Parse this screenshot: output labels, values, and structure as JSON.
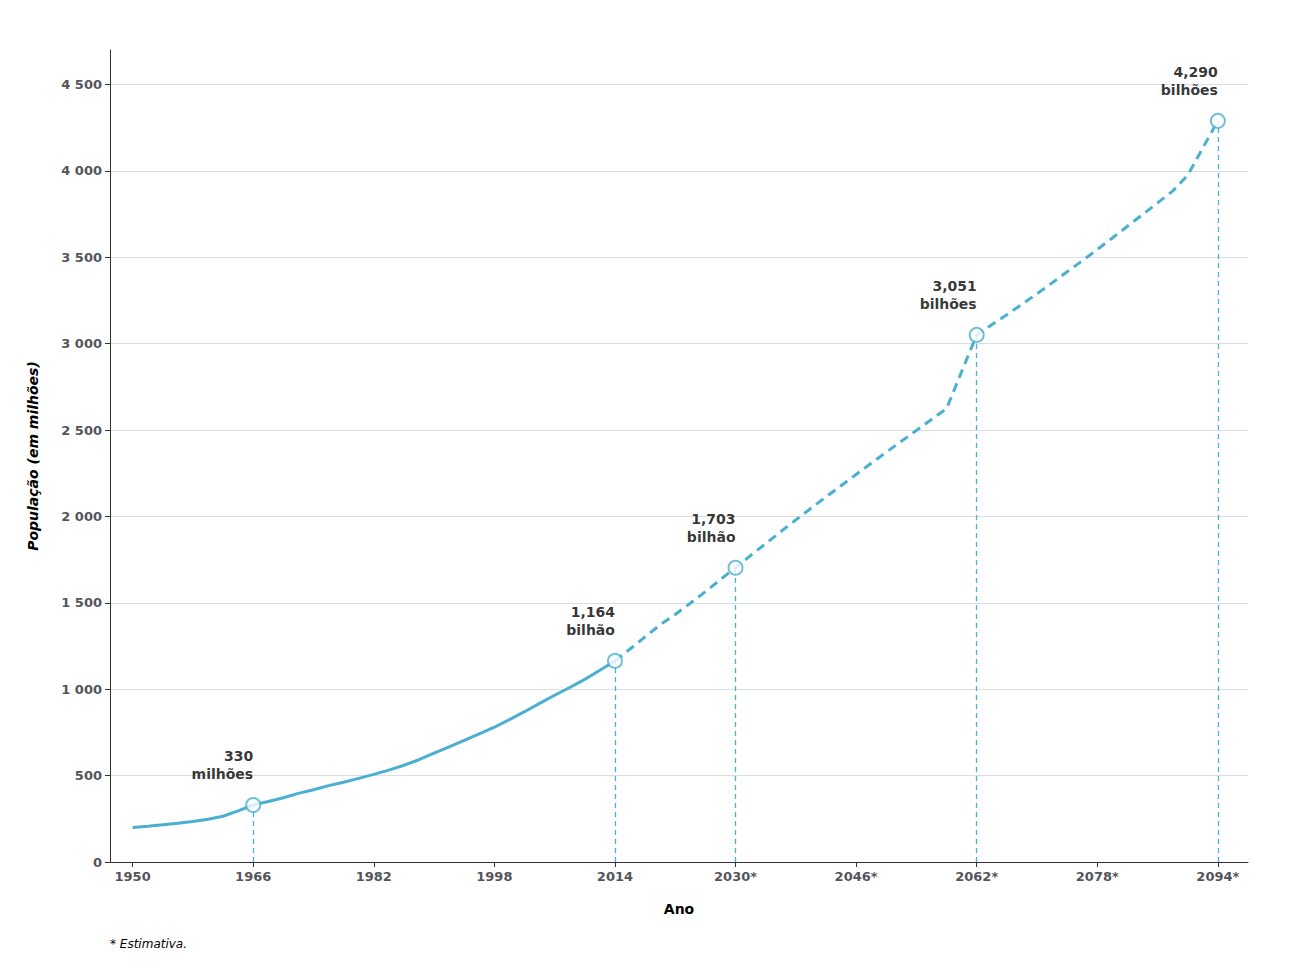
{
  "chart_data": {
    "type": "line",
    "ylabel": "População (em milhões)",
    "xlabel": "Ano",
    "footnote": "* Estimativa.",
    "xlim": [
      1947,
      2098
    ],
    "ylim": [
      0,
      4700
    ],
    "xticks": [
      1950,
      1966,
      1982,
      1998,
      2014,
      {
        "value": 2030,
        "label": "2030*"
      },
      {
        "value": 2046,
        "label": "2046*"
      },
      {
        "value": 2062,
        "label": "2062*"
      },
      {
        "value": 2078,
        "label": "2078*"
      },
      {
        "value": 2094,
        "label": "2094*"
      }
    ],
    "yticks": [
      0,
      500,
      {
        "value": 1000,
        "label": "1 000"
      },
      {
        "value": 1500,
        "label": "1 500"
      },
      {
        "value": 2000,
        "label": "2 000"
      },
      {
        "value": 2500,
        "label": "2 500"
      },
      {
        "value": 3000,
        "label": "3 000"
      },
      {
        "value": 3500,
        "label": "3 500"
      },
      {
        "value": 4000,
        "label": "4 000"
      },
      {
        "value": 4500,
        "label": "4 500"
      }
    ],
    "grid": true,
    "series": [
      {
        "type": "line",
        "line_style": "solid",
        "color": "#4AAFD0",
        "x": [
          1950,
          1952,
          1954,
          1956,
          1958,
          1960,
          1962,
          1964,
          1966,
          1968,
          1970,
          1972,
          1974,
          1976,
          1978,
          1980,
          1982,
          1984,
          1986,
          1988,
          1990,
          1992,
          1994,
          1996,
          1998,
          2000,
          2002,
          2004,
          2006,
          2008,
          2010,
          2012,
          2014
        ],
        "values": [
          200,
          207,
          215,
          224,
          235,
          248,
          265,
          296,
          330,
          350,
          372,
          397,
          418,
          442,
          462,
          484,
          507,
          532,
          560,
          592,
          630,
          667,
          704,
          742,
          780,
          824,
          870,
          918,
          965,
          1010,
          1057,
          1110,
          1164
        ]
      },
      {
        "type": "line",
        "line_style": "dashed",
        "color": "#4AAFD0",
        "x": [
          2014,
          2016,
          2018,
          2020,
          2022,
          2024,
          2026,
          2028,
          2030,
          2032,
          2034,
          2036,
          2038,
          2040,
          2042,
          2044,
          2046,
          2048,
          2050,
          2052,
          2054,
          2056,
          2058,
          2060,
          2062,
          2064,
          2066,
          2068,
          2070,
          2072,
          2074,
          2076,
          2078,
          2080,
          2082,
          2084,
          2086,
          2088,
          2090,
          2092,
          2094
        ],
        "values": [
          1164,
          1233,
          1303,
          1373,
          1433,
          1498,
          1565,
          1635,
          1703,
          1774,
          1843,
          1912,
          1980,
          2047,
          2113,
          2178,
          2243,
          2308,
          2372,
          2435,
          2498,
          2561,
          2624,
          2838,
          3051,
          3110,
          3168,
          3228,
          3289,
          3352,
          3416,
          3480,
          3545,
          3612,
          3680,
          3747,
          3815,
          3883,
          3975,
          4133,
          4290
        ]
      },
      {
        "type": "scatter",
        "marker": "open_circle",
        "color": "#4AAFD0",
        "data_labels": true,
        "x": [
          1966,
          2014,
          2030,
          2062,
          2094
        ],
        "values": [
          330,
          1164,
          1703,
          3051,
          4290
        ],
        "value_labels": [
          "330\nmilhões",
          "1,164\nbilhão",
          "1,703\nbilhão",
          "3,051\nbilhões",
          "4,290\nbilhões"
        ]
      }
    ]
  }
}
